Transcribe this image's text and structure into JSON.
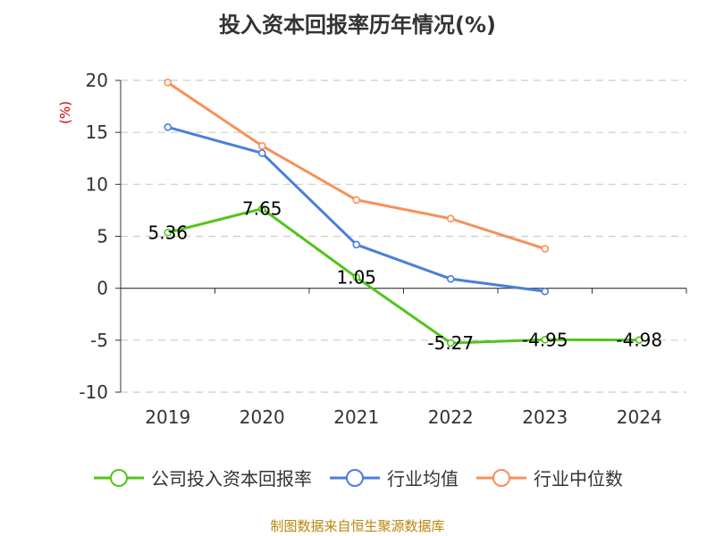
{
  "title": "投入资本回报率历年情况(%)",
  "source": "制图数据来自恒生聚源数据库",
  "colors": {
    "company": "#52c41a",
    "industry_avg": "#4a7fdc",
    "industry_median": "#f7905a",
    "axis": "#333333",
    "grid": "#cccccc",
    "unit": "#cc0000",
    "label": "#000000"
  },
  "chart_data": {
    "type": "line",
    "title": "投入资本回报率历年情况(%)",
    "xlabel": "",
    "ylabel": "(%)",
    "categories": [
      "2019",
      "2020",
      "2021",
      "2022",
      "2023",
      "2024"
    ],
    "ylim": [
      -10,
      20
    ],
    "yticks": [
      20,
      15,
      10,
      5,
      0,
      -5,
      -10
    ],
    "grid": true,
    "legend_position": "bottom",
    "series": [
      {
        "name": "公司投入资本回报率",
        "color_key": "company",
        "values": [
          5.36,
          7.65,
          1.05,
          -5.27,
          -4.95,
          -4.98
        ],
        "labels": [
          "5.36",
          "7.65",
          "1.05",
          "-5.27",
          "-4.95",
          "-4.98"
        ]
      },
      {
        "name": "行业均值",
        "color_key": "industry_avg",
        "values": [
          15.5,
          13.0,
          4.2,
          0.9,
          -0.3,
          null
        ],
        "labels": []
      },
      {
        "name": "行业中位数",
        "color_key": "industry_median",
        "values": [
          19.8,
          13.7,
          8.5,
          6.7,
          3.8,
          null
        ],
        "labels": []
      }
    ]
  }
}
